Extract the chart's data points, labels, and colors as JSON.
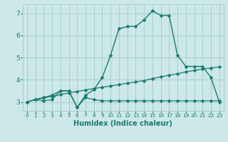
{
  "xlabel": "Humidex (Indice chaleur)",
  "xlim": [
    -0.5,
    23.5
  ],
  "ylim": [
    2.6,
    7.4
  ],
  "yticks": [
    3,
    4,
    5,
    6,
    7
  ],
  "xticks": [
    0,
    1,
    2,
    3,
    4,
    5,
    6,
    7,
    8,
    9,
    10,
    11,
    12,
    13,
    14,
    15,
    16,
    17,
    18,
    19,
    20,
    21,
    22,
    23
  ],
  "background_color": "#cce8e8",
  "grid_color": "#aacfcf",
  "line_color": "#1a7a6e",
  "line1_x": [
    0,
    1,
    2,
    3,
    4,
    5,
    6,
    7,
    8,
    9,
    10,
    11,
    12,
    13,
    14,
    15,
    16,
    17,
    18,
    19,
    20,
    21,
    22,
    23
  ],
  "line1_y": [
    3.0,
    3.1,
    3.05,
    3.1,
    3.5,
    3.5,
    2.75,
    3.2,
    3.1,
    3.05,
    3.05,
    3.05,
    3.05,
    3.05,
    3.05,
    3.05,
    3.05,
    3.05,
    3.05,
    3.05,
    3.05,
    3.05,
    3.05,
    3.05
  ],
  "line2_x": [
    0,
    1,
    2,
    3,
    4,
    5,
    6,
    7,
    8,
    9,
    10,
    11,
    12,
    13,
    14,
    15,
    16,
    17,
    18,
    19,
    20,
    21,
    22,
    23
  ],
  "line2_y": [
    3.0,
    3.1,
    3.18,
    3.25,
    3.33,
    3.4,
    3.47,
    3.54,
    3.6,
    3.66,
    3.72,
    3.78,
    3.84,
    3.9,
    3.96,
    4.05,
    4.13,
    4.2,
    4.27,
    4.35,
    4.42,
    4.48,
    4.53,
    4.57
  ],
  "line3_x": [
    0,
    1,
    2,
    3,
    4,
    5,
    6,
    7,
    8,
    9,
    10,
    11,
    12,
    13,
    14,
    15,
    16,
    17,
    18,
    19,
    20,
    21,
    22,
    23
  ],
  "line3_y": [
    3.0,
    3.1,
    3.2,
    3.3,
    3.5,
    3.5,
    2.75,
    3.3,
    3.55,
    4.1,
    5.1,
    6.3,
    6.4,
    6.4,
    6.7,
    7.1,
    6.9,
    6.9,
    5.1,
    4.6,
    4.6,
    4.6,
    4.1,
    3.0
  ]
}
